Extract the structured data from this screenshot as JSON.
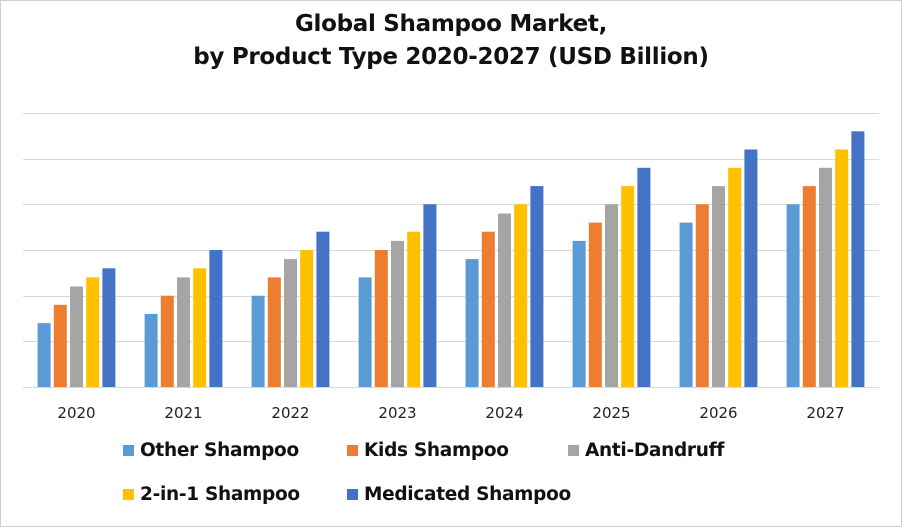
{
  "chart_data": {
    "type": "bar",
    "title_line1": "Global Shampoo Market,",
    "title_line2": "by Product Type 2020-2027 (USD Billion)",
    "xlabel": "",
    "ylabel": "",
    "categories": [
      "2020",
      "2021",
      "2022",
      "2023",
      "2024",
      "2025",
      "2026",
      "2027"
    ],
    "ylim": [
      0,
      6
    ],
    "yticks_shown": false,
    "grid": true,
    "grid_interval": 1,
    "legend_position": "bottom",
    "series": [
      {
        "name": "Other Shampoo",
        "color": "#5b9bd5",
        "values": [
          1.4,
          1.6,
          2.0,
          2.4,
          2.8,
          3.2,
          3.6,
          4.0
        ]
      },
      {
        "name": "Kids Shampoo",
        "color": "#ed7d31",
        "values": [
          1.8,
          2.0,
          2.4,
          3.0,
          3.4,
          3.6,
          4.0,
          4.4
        ]
      },
      {
        "name": "Anti-Dandruff",
        "color": "#a5a5a5",
        "values": [
          2.2,
          2.4,
          2.8,
          3.2,
          3.8,
          4.0,
          4.4,
          4.8
        ]
      },
      {
        "name": "2-in-1 Shampoo",
        "color": "#ffc000",
        "values": [
          2.4,
          2.6,
          3.0,
          3.4,
          4.0,
          4.4,
          4.8,
          5.2
        ]
      },
      {
        "name": "Medicated Shampoo",
        "color": "#4472c4",
        "values": [
          2.6,
          3.0,
          3.4,
          4.0,
          4.4,
          4.8,
          5.2,
          5.6
        ]
      }
    ]
  }
}
